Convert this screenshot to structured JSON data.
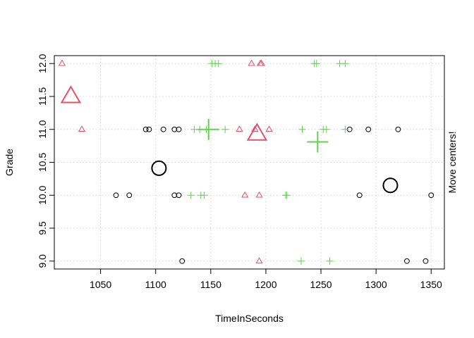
{
  "chart_data": {
    "type": "scatter",
    "title": "",
    "xlabel": "TimeInSeconds",
    "ylabel": "Grade",
    "side_label": "Move centers!",
    "xlim": [
      1008,
      1362
    ],
    "ylim": [
      8.88,
      12.12
    ],
    "xticks": [
      1050,
      1100,
      1150,
      1200,
      1250,
      1300,
      1350
    ],
    "yticks": [
      9.0,
      9.5,
      10.0,
      10.5,
      11.0,
      11.5,
      12.0
    ],
    "ytick_labels": [
      "9.0",
      "9.5",
      "10.0",
      "10.5",
      "11.0",
      "11.5",
      "12.0"
    ],
    "grid": true,
    "legend": "none",
    "series": [
      {
        "marker": "circle",
        "color": "#000000",
        "points": [
          [
            1124,
            9
          ],
          [
            1328,
            9
          ],
          [
            1345,
            9
          ],
          [
            1064,
            10
          ],
          [
            1076,
            10
          ],
          [
            1117,
            10
          ],
          [
            1121,
            10
          ],
          [
            1285,
            10
          ],
          [
            1350,
            10
          ],
          [
            1091,
            11
          ],
          [
            1094,
            11
          ],
          [
            1107,
            11
          ],
          [
            1117,
            11
          ],
          [
            1121,
            11
          ],
          [
            1276,
            11
          ],
          [
            1293,
            11
          ],
          [
            1320,
            11
          ]
        ],
        "centers": [
          [
            1103,
            10.41
          ],
          [
            1313,
            10.15
          ]
        ]
      },
      {
        "marker": "triangle",
        "color": "#DF536B",
        "points": [
          [
            1015,
            12
          ],
          [
            1187,
            12
          ],
          [
            1195,
            12
          ],
          [
            1196,
            12
          ],
          [
            1033,
            11
          ],
          [
            1176,
            11
          ],
          [
            1190,
            11
          ],
          [
            1203,
            11
          ],
          [
            1181,
            10
          ],
          [
            1194,
            10
          ],
          [
            1194,
            9
          ]
        ],
        "centers": [
          [
            1023,
            11.5
          ],
          [
            1192,
            10.93
          ]
        ]
      },
      {
        "marker": "plus",
        "color": "#61D04F",
        "points": [
          [
            1151,
            12
          ],
          [
            1154,
            12
          ],
          [
            1157,
            12
          ],
          [
            1244,
            12
          ],
          [
            1246,
            12
          ],
          [
            1267,
            12
          ],
          [
            1272,
            12
          ],
          [
            1135,
            11
          ],
          [
            1140,
            11
          ],
          [
            1146,
            11
          ],
          [
            1163,
            11
          ],
          [
            1233,
            11
          ],
          [
            1252,
            11
          ],
          [
            1255,
            11
          ],
          [
            1272,
            11
          ],
          [
            1132,
            10
          ],
          [
            1141,
            10
          ],
          [
            1144,
            10
          ],
          [
            1218,
            10
          ],
          [
            1219,
            10
          ],
          [
            1232,
            9
          ],
          [
            1258,
            9
          ]
        ],
        "centers": [
          [
            1148,
            11
          ],
          [
            1247,
            10.81
          ]
        ]
      }
    ]
  }
}
